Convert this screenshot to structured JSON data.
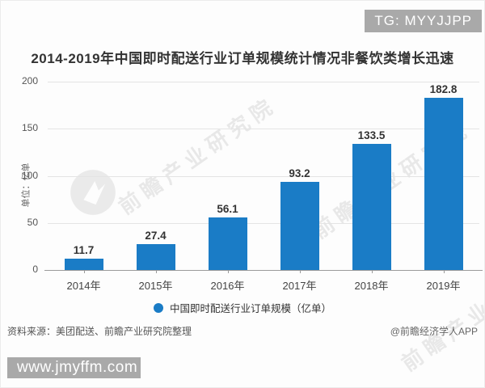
{
  "tg_badge": "TG: MYYJJPP",
  "site_badge": "www.jmyffm.com",
  "watermark_text": "前瞻产业研究院",
  "chart_data": {
    "type": "bar",
    "title": "2014-2019年中国即时配送行业订单规模统计情况非餐饮类增长迅速",
    "categories": [
      "2014年",
      "2015年",
      "2016年",
      "2017年",
      "2018年",
      "2019年"
    ],
    "values": [
      11.7,
      27.4,
      56.1,
      93.2,
      133.5,
      182.8
    ],
    "ylabel": "单位：亿单",
    "xlabel": "",
    "ylim": [
      0,
      200
    ],
    "yticks": [
      0,
      50,
      100,
      150,
      200
    ],
    "grid": true,
    "bar_color": "#1a7cc6",
    "legend": {
      "label": "中国即时配送行业订单规模（亿单）",
      "marker_color": "#1a7cc6",
      "position": "bottom"
    }
  },
  "footer": {
    "source": "资料来源：美团配送、前瞻产业研究院整理",
    "credit": "@前瞻经济学人APP"
  }
}
